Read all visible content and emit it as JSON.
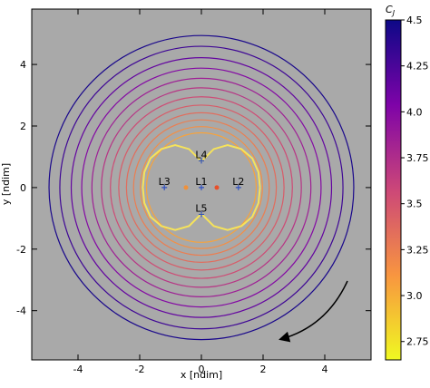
{
  "chart_data": {
    "type": "contour",
    "xlabel": "x [ndim]",
    "ylabel": "y [ndim]",
    "xlim": [
      -5.5,
      5.5
    ],
    "ylim": [
      -5.6,
      5.8
    ],
    "xticks": [
      -4,
      -2,
      0,
      2,
      4
    ],
    "yticks": [
      -4,
      -2,
      0,
      2,
      4
    ],
    "background": "#a9a9a9",
    "contours": [
      {
        "level": 4.45,
        "radius": 4.94
      },
      {
        "level": 4.3,
        "radius": 4.59
      },
      {
        "level": 4.15,
        "radius": 4.22
      },
      {
        "level": 4.0,
        "radius": 3.88
      },
      {
        "level": 3.85,
        "radius": 3.55
      },
      {
        "level": 3.7,
        "radius": 3.24
      },
      {
        "level": 3.55,
        "radius": 2.95
      },
      {
        "level": 3.45,
        "radius": 2.68
      },
      {
        "level": 3.35,
        "radius": 2.43
      },
      {
        "level": 3.25,
        "radius": 2.2
      },
      {
        "level": 3.15,
        "radius": 1.98
      },
      {
        "level": 3.05,
        "radius": 1.78
      }
    ],
    "zvc": {
      "color": "#f6e35a",
      "x": [
        1.9,
        1.85,
        1.65,
        1.3,
        0.85,
        0.4,
        0,
        -0.4,
        -0.85,
        -1.3,
        -1.65,
        -1.85,
        -1.9,
        -1.85,
        -1.65,
        -1.3,
        -0.85,
        -0.4,
        0,
        0.4,
        0.85,
        1.3,
        1.65,
        1.85,
        1.9
      ],
      "y": [
        0,
        0.5,
        0.95,
        1.25,
        1.38,
        1.25,
        0.85,
        1.25,
        1.38,
        1.25,
        0.95,
        0.5,
        0,
        -0.5,
        -0.95,
        -1.25,
        -1.38,
        -1.25,
        -0.85,
        -1.25,
        -1.38,
        -1.25,
        -0.95,
        -0.5,
        0
      ]
    },
    "lagrange_points": {
      "color": "#3050c0",
      "names": [
        "L1",
        "L2",
        "L3",
        "L4",
        "L5"
      ],
      "x": [
        0,
        1.2,
        -1.2,
        0,
        0
      ],
      "y": [
        0,
        0,
        0,
        0.87,
        -0.87
      ]
    },
    "primaries": {
      "x": [
        -0.5,
        0.5
      ],
      "y": [
        0,
        0
      ],
      "colors": [
        "#f0913a",
        "#e8502a"
      ]
    },
    "colorbar": {
      "label": "C",
      "label_subscript": "J",
      "lim": [
        2.65,
        4.5
      ],
      "ticks": [
        2.75,
        {
          "value": 3.0,
          "label": "3.0"
        },
        3.25,
        {
          "value": 3.5,
          "label": "3.5"
        },
        3.75,
        {
          "value": 4.0,
          "label": "4.0"
        },
        4.25,
        {
          "value": 4.5,
          "label": "4.5"
        }
      ],
      "colormap": [
        "#0d0887",
        "#7e03a8",
        "#cc4778",
        "#f89540",
        "#f0f921"
      ]
    }
  }
}
